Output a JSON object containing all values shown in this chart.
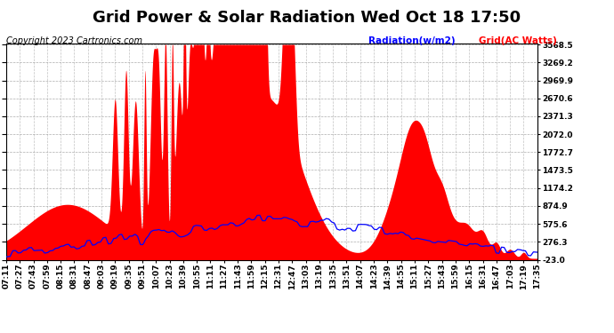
{
  "title": "Grid Power & Solar Radiation Wed Oct 18 17:50",
  "copyright": "Copyright 2023 Cartronics.com",
  "legend_radiation": "Radiation(w/m2)",
  "legend_grid": "Grid(AC Watts)",
  "yticks": [
    -23.0,
    276.3,
    575.6,
    874.9,
    1174.2,
    1473.5,
    1772.7,
    2072.0,
    2371.3,
    2670.6,
    2969.9,
    3269.2,
    3568.5
  ],
  "ymin": -23.0,
  "ymax": 3568.5,
  "xtick_labels": [
    "07:11",
    "07:27",
    "07:43",
    "07:59",
    "08:15",
    "08:31",
    "08:47",
    "09:03",
    "09:19",
    "09:35",
    "09:51",
    "10:07",
    "10:23",
    "10:39",
    "10:55",
    "11:11",
    "11:27",
    "11:43",
    "11:59",
    "12:15",
    "12:31",
    "12:47",
    "13:03",
    "13:19",
    "13:35",
    "13:51",
    "14:07",
    "14:23",
    "14:39",
    "14:55",
    "15:11",
    "15:27",
    "15:43",
    "15:59",
    "16:15",
    "16:31",
    "16:47",
    "17:03",
    "17:19",
    "17:35"
  ],
  "background_color": "#ffffff",
  "plot_bg_color": "#ffffff",
  "grid_color": "#999999",
  "red_color": "#ff0000",
  "blue_color": "#0000ff",
  "title_fontsize": 13,
  "label_fontsize": 7.5,
  "tick_fontsize": 6.5,
  "copyright_fontsize": 7
}
